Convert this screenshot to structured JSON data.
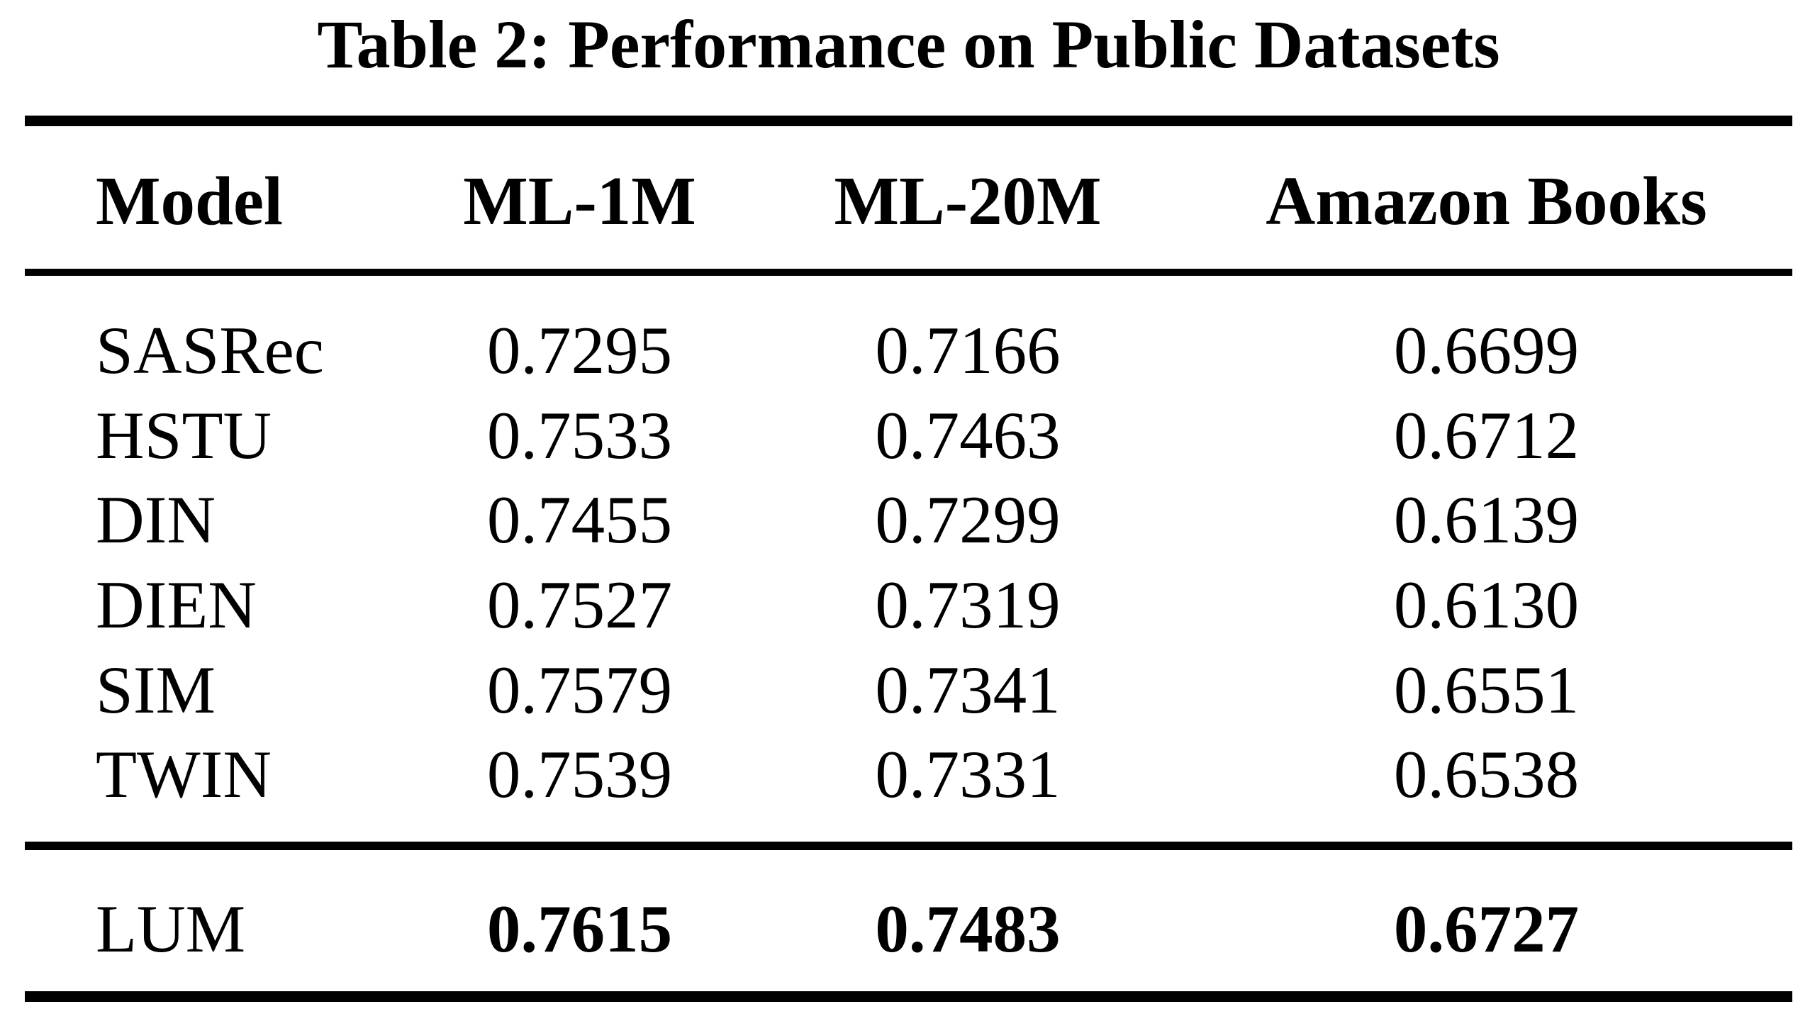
{
  "title": "Table 2: Performance on Public Datasets",
  "table": {
    "columns": [
      "Model",
      "ML-1M",
      "ML-20M",
      "Amazon Books"
    ],
    "rows": [
      {
        "model": "SASRec",
        "values": [
          "0.7295",
          "0.7166",
          "0.6699"
        ]
      },
      {
        "model": "HSTU",
        "values": [
          "0.7533",
          "0.7463",
          "0.6712"
        ]
      },
      {
        "model": "DIN",
        "values": [
          "0.7455",
          "0.7299",
          "0.6139"
        ]
      },
      {
        "model": "DIEN",
        "values": [
          "0.7527",
          "0.7319",
          "0.6130"
        ]
      },
      {
        "model": "SIM",
        "values": [
          "0.7579",
          "0.7341",
          "0.6551"
        ]
      },
      {
        "model": "TWIN",
        "values": [
          "0.7539",
          "0.7331",
          "0.6538"
        ]
      }
    ],
    "highlight_row": {
      "model": "LUM",
      "values": [
        "0.7615",
        "0.7483",
        "0.6727"
      ]
    }
  },
  "colors": {
    "text": "#000000",
    "background": "#ffffff",
    "rule": "#000000"
  }
}
